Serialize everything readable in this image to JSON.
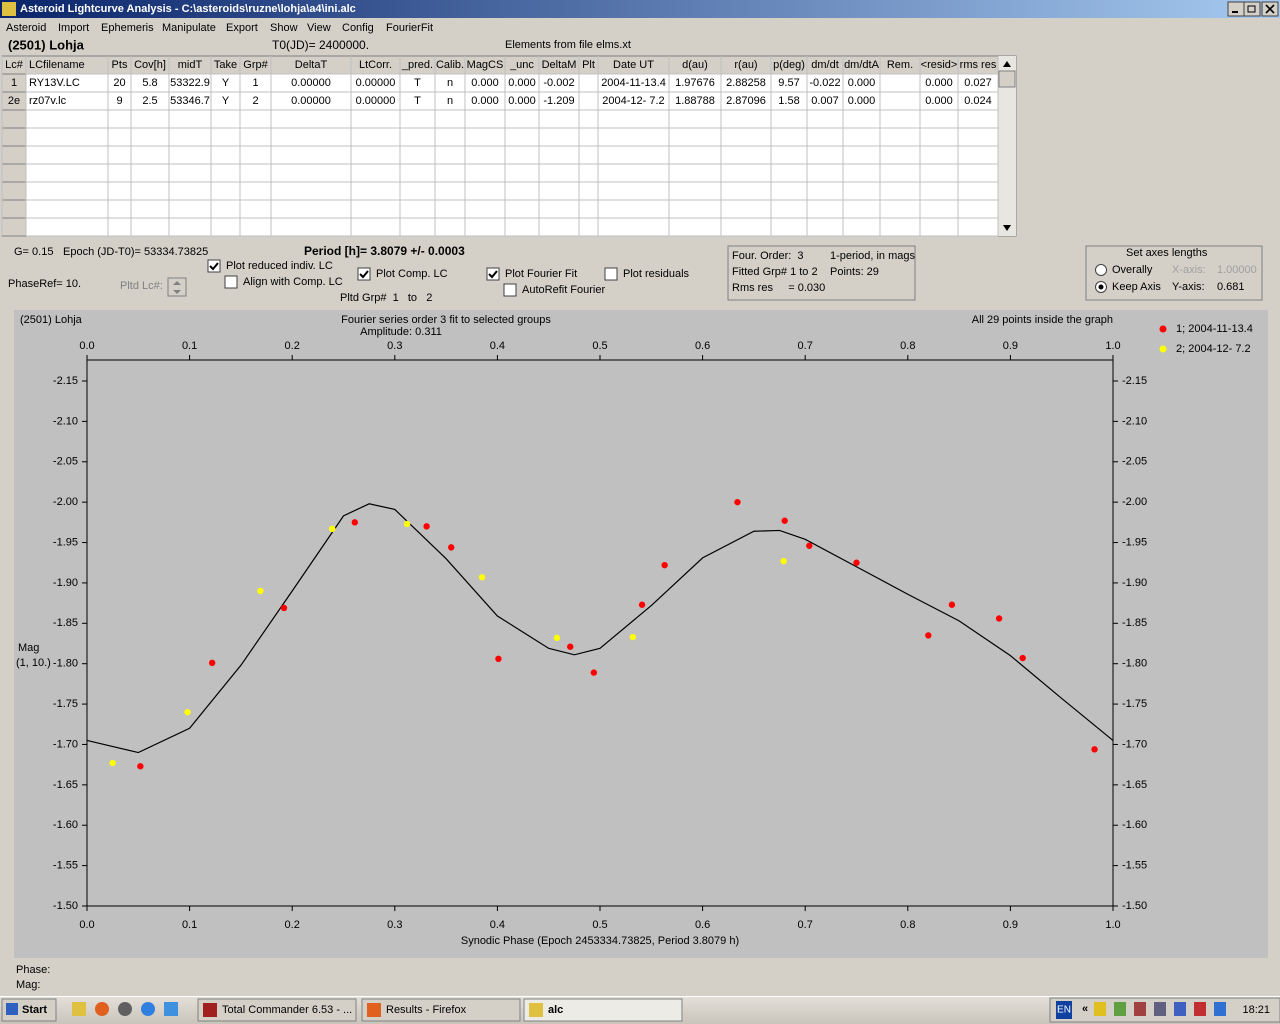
{
  "window": {
    "title": "Asteroid Lightcurve Analysis - C:\\asteroids\\ruzne\\lohja\\a4\\ini.alc"
  },
  "menu": [
    "Asteroid",
    "Import",
    "Ephemeris",
    "Manipulate",
    "Export",
    "Show",
    "View",
    "Config",
    "FourierFit"
  ],
  "header": {
    "object": "(2501) Lohja",
    "t0": "T0(JD)= 2400000.",
    "elements": "Elements from file elms.xt"
  },
  "table": {
    "columns": [
      "Lc#",
      "LCfilename",
      "Pts",
      "Cov[h]",
      "midT",
      "Take",
      "Grp#",
      "DeltaT",
      "LtCorr.",
      "_pred.",
      "Calib.",
      "MagCS",
      "_unc",
      "DeltaM",
      "Plt",
      "Date UT",
      "d(au)",
      "r(au)",
      "p(deg)",
      "dm/dt",
      "dm/dtA",
      "Rem.",
      "<resid>",
      "rms res"
    ],
    "rows": [
      [
        "1",
        "RY13V.LC",
        "20",
        "5.8",
        "53322.9",
        "Y",
        "1",
        "0.00000",
        "0.00000",
        "T",
        "n",
        "0.000",
        "0.000",
        "-0.002",
        null,
        "2004-11-13.4",
        "1.97676",
        "2.88258",
        "9.57",
        "-0.022",
        "0.000",
        null,
        "0.000",
        "0.027"
      ],
      [
        "2e",
        "rz07v.lc",
        "9",
        "2.5",
        "53346.7",
        "Y",
        "2",
        "0.00000",
        "0.00000",
        "T",
        "n",
        "0.000",
        "0.000",
        "-1.209",
        null,
        "2004-12- 7.2",
        "1.88788",
        "2.87096",
        "1.58",
        "0.007",
        "0.000",
        null,
        "0.000",
        "0.024"
      ]
    ]
  },
  "controls": {
    "g": "G= 0.15",
    "epoch": "Epoch (JD-T0)= 53334.73825",
    "period": "Period [h]= 3.8079 +/- 0.0003",
    "phase_ref": "PhaseRef= 10.",
    "pltd_lc": "Pltd Lc#:",
    "pltd_grp": "Pltd Grp#  1   to   2",
    "checkboxes": [
      {
        "label": "Plot reduced indiv. LC",
        "checked": true
      },
      {
        "label": "Align with Comp. LC",
        "checked": false
      },
      {
        "label": "Plot Comp. LC",
        "checked": true
      },
      {
        "label": "Plot Fourier Fit",
        "checked": true
      },
      {
        "label": "AutoRefit Fourier",
        "checked": false
      },
      {
        "label": "Plot residuals",
        "checked": false
      }
    ]
  },
  "fit_info": {
    "order": "Four. Order:  3",
    "mode": "1-period, in mags",
    "groups": "Fitted Grp# 1 to 2",
    "points": "Points: 29",
    "rms": "Rms res     = 0.030"
  },
  "axes_box": {
    "title": "Set axes lengths",
    "options": [
      {
        "label": "Overally",
        "selected": false,
        "axis": "X-axis:",
        "value": "1.00000"
      },
      {
        "label": "Keep Axis",
        "selected": true,
        "axis": "Y-axis:",
        "value": "0.681"
      }
    ]
  },
  "chart_data": {
    "type": "scatter",
    "title": "(2501) Lohja",
    "subtitle": "Fourier series order 3 fit to selected groups",
    "amplitude": "Amplitude: 0.311",
    "annotation": "All 29 points inside the graph",
    "xlabel": "Synodic Phase (Epoch 2453334.73825, Period 3.8079 h)",
    "ylabel": "Mag",
    "ylabel_note": "(1, 10.)",
    "xlim": [
      0,
      1
    ],
    "ylim": [
      -1.5,
      -2.176
    ],
    "xticks": [
      {
        "value": 0,
        "label": "0.0"
      },
      0.1,
      0.2,
      0.3,
      0.4,
      0.5,
      0.6,
      0.7,
      0.8,
      0.9,
      {
        "value": 1,
        "label": "1.0"
      }
    ],
    "yticks": [
      -2.15,
      {
        "value": -2.1,
        "label": "-2.10"
      },
      -2.05,
      {
        "value": -2,
        "label": "-2.00"
      },
      -1.95,
      {
        "value": -1.9,
        "label": "-1.90"
      },
      -1.85,
      {
        "value": -1.8,
        "label": "-1.80"
      },
      -1.75,
      {
        "value": -1.7,
        "label": "-1.70"
      },
      -1.65,
      {
        "value": -1.6,
        "label": "-1.60"
      },
      -1.55,
      {
        "value": -1.5,
        "label": "-1.50"
      }
    ],
    "grid": false,
    "legend": "right",
    "series": [
      {
        "name": "1; 2004-11-13.4",
        "color": "#ff0000",
        "x": [
          0.052,
          0.122,
          0.192,
          0.261,
          0.331,
          0.355,
          0.401,
          0.471,
          0.494,
          0.541,
          0.563,
          0.634,
          0.68,
          0.704,
          0.75,
          0.82,
          0.843,
          0.889,
          0.912,
          0.982
        ],
        "values": [
          -1.673,
          -1.801,
          -1.869,
          -1.975,
          -1.97,
          -1.944,
          -1.806,
          -1.821,
          -1.789,
          -1.873,
          -1.922,
          -2.0,
          -1.977,
          -1.946,
          -1.925,
          -1.835,
          -1.873,
          -1.856,
          -1.807,
          -1.694
        ]
      },
      {
        "name": "2; 2004-12- 7.2",
        "color": "#ffff00",
        "x": [
          0.025,
          0.098,
          0.169,
          0.239,
          0.312,
          0.385,
          0.458,
          0.532,
          0.679
        ],
        "values": [
          -1.677,
          -1.74,
          -1.89,
          -1.967,
          -1.973,
          -1.907,
          -1.832,
          -1.833,
          -1.927
        ]
      }
    ],
    "curve": {
      "color": "#000000",
      "x": [
        0,
        0.05,
        0.1,
        0.15,
        0.2,
        0.25,
        0.275,
        0.3,
        0.35,
        0.4,
        0.45,
        0.475,
        0.5,
        0.55,
        0.6,
        0.65,
        0.675,
        0.7,
        0.75,
        0.8,
        0.85,
        0.9,
        0.95,
        1
      ],
      "values": [
        -1.705,
        -1.69,
        -1.72,
        -1.798,
        -1.89,
        -1.983,
        -1.998,
        -1.991,
        -1.93,
        -1.859,
        -1.819,
        -1.811,
        -1.819,
        -1.872,
        -1.931,
        -1.964,
        -1.965,
        -1.954,
        -1.92,
        -1.886,
        -1.853,
        -1.81,
        -1.757,
        -1.705
      ]
    }
  },
  "status": {
    "phase": "Phase:",
    "mag": "Mag:"
  },
  "taskbar": {
    "start": "Start",
    "tasks": [
      "Total Commander 6.53 - ...",
      "Results - Firefox",
      "alc"
    ],
    "lang": "EN",
    "tray_arrow": "«",
    "clock": "18:21"
  }
}
